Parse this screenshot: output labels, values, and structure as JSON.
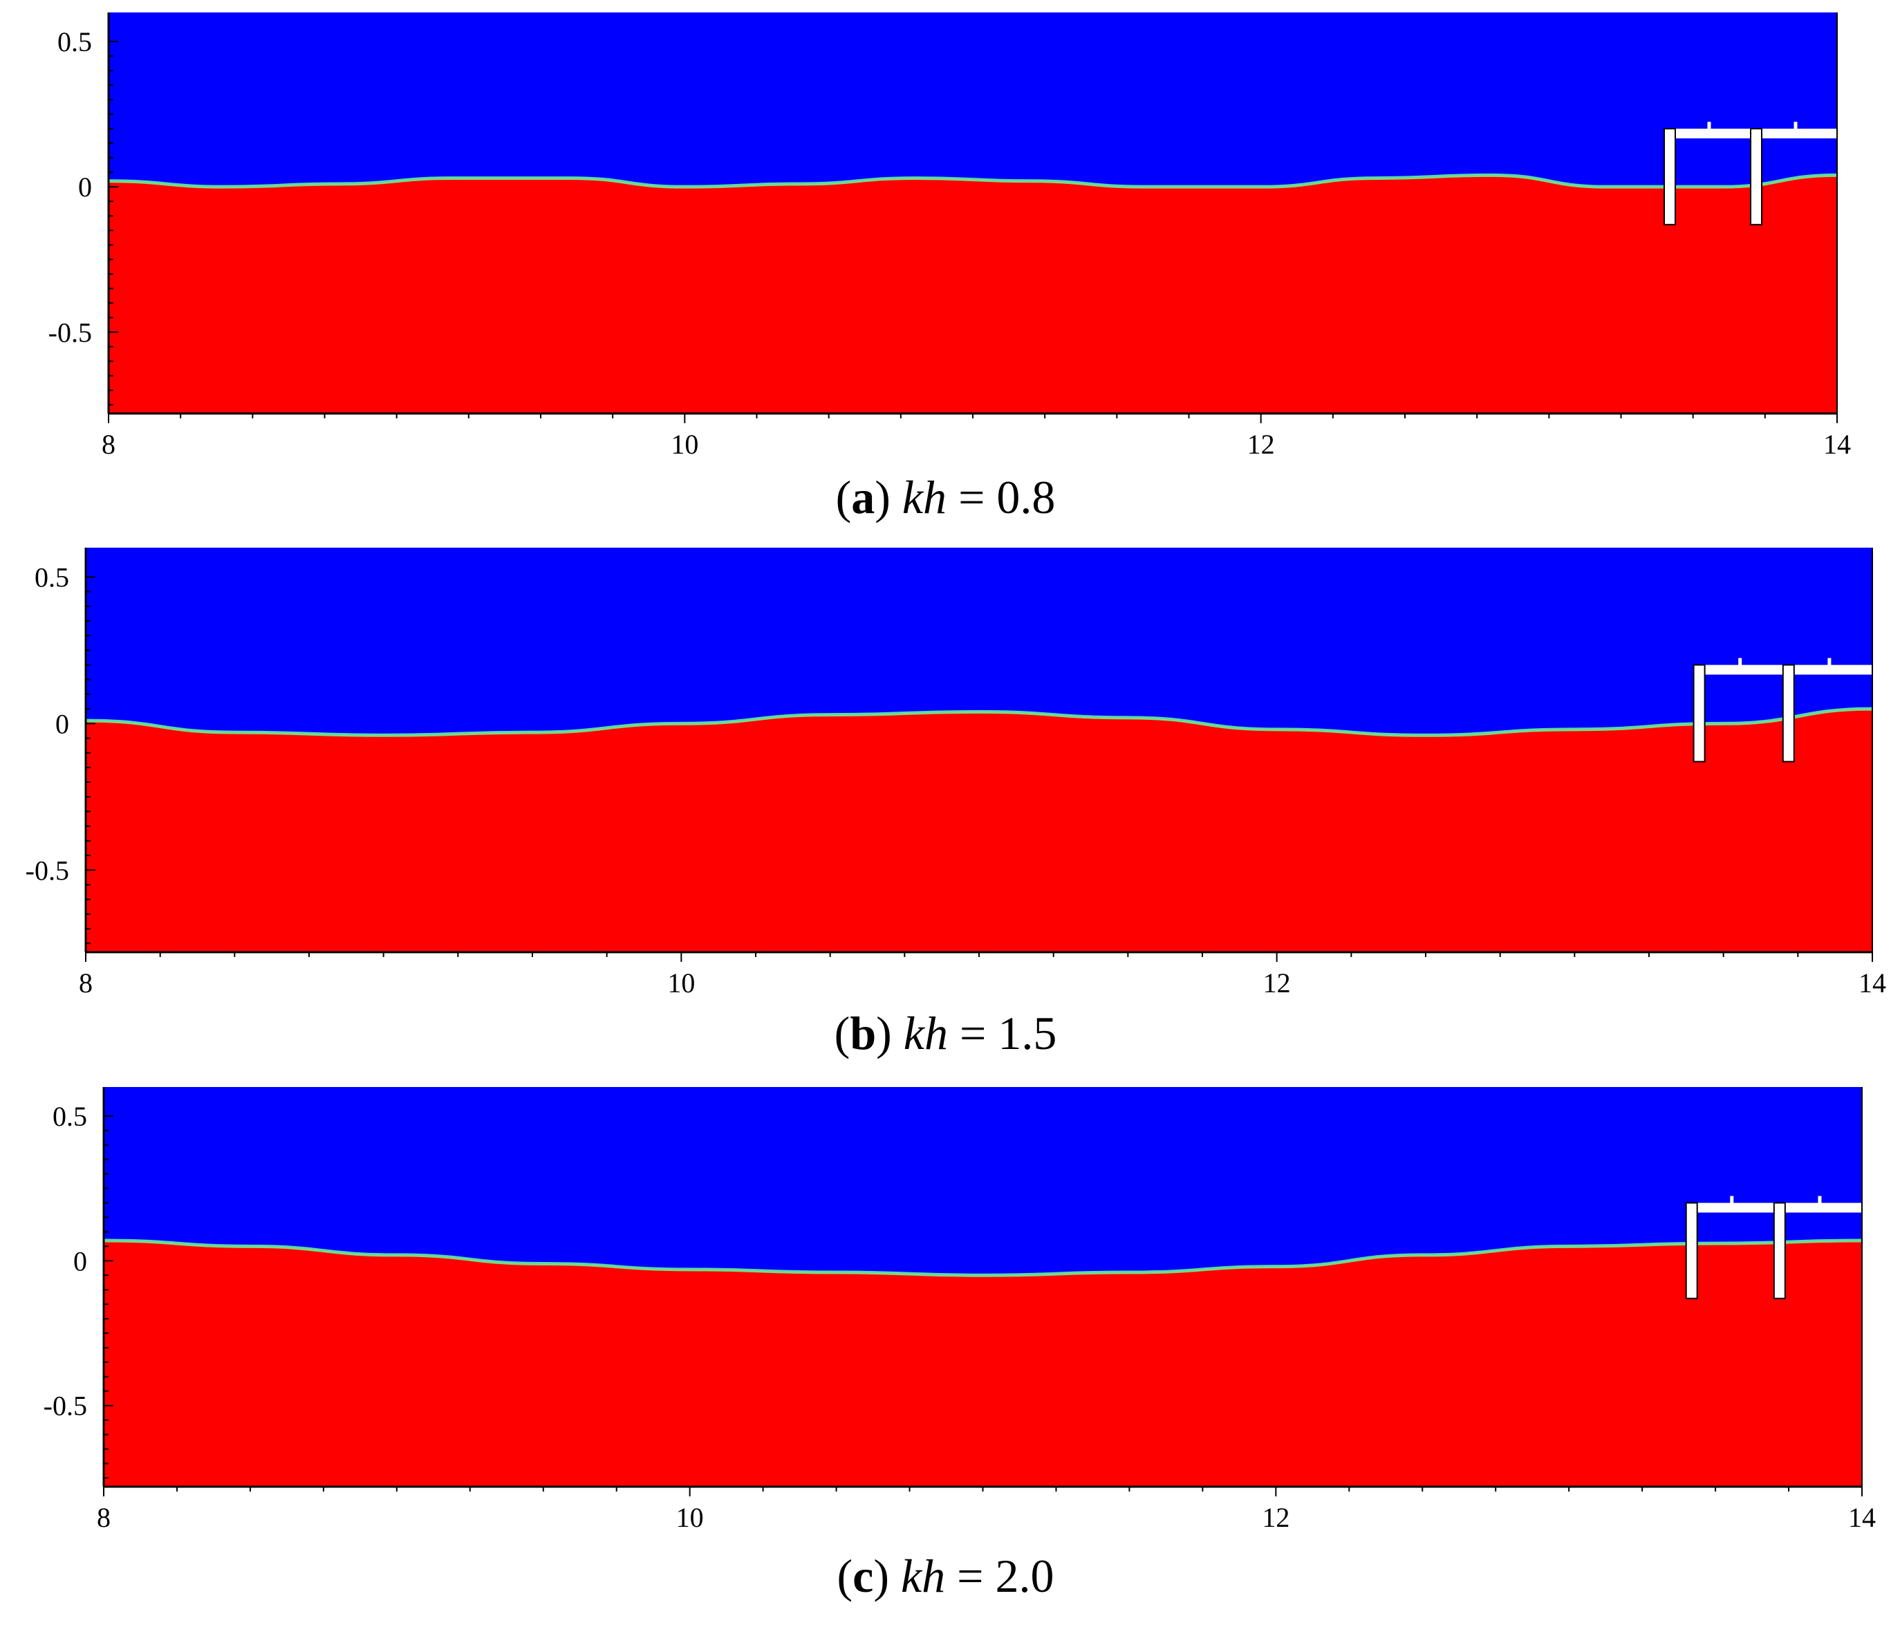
{
  "colors": {
    "air": "#0000ff",
    "water": "#ff0000",
    "interface": "#66ff99",
    "structure": "#ffffff",
    "axis": "#000000"
  },
  "chart_data": [
    {
      "type": "heatmap",
      "caption": {
        "open": "(",
        "letter": "a",
        "close": ")",
        "var": "kh",
        "rest": " = 0.8"
      },
      "xlim": [
        8,
        14
      ],
      "ylim": [
        -0.78,
        0.6
      ],
      "x_ticks": [
        8,
        10,
        12,
        14
      ],
      "x_tick_labels": [
        "8",
        "10",
        "12",
        "14"
      ],
      "y_ticks": [
        0.5,
        0,
        -0.5
      ],
      "y_tick_labels": [
        "0.5",
        "0",
        "-0.5"
      ],
      "surface": {
        "x": [
          8,
          8.4,
          8.8,
          9.2,
          9.6,
          10.0,
          10.4,
          10.8,
          11.2,
          11.6,
          12.0,
          12.4,
          12.8,
          13.2,
          13.6,
          14.0
        ],
        "y": [
          0.02,
          0.0,
          0.01,
          0.03,
          0.03,
          0.0,
          0.01,
          0.03,
          0.02,
          0.0,
          0.0,
          0.03,
          0.04,
          0.0,
          0.0,
          0.04
        ]
      }
    },
    {
      "type": "heatmap",
      "caption": {
        "open": "(",
        "letter": "b",
        "close": ")",
        "var": "kh",
        "rest": " = 1.5"
      },
      "xlim": [
        8,
        14
      ],
      "ylim": [
        -0.78,
        0.6
      ],
      "x_ticks": [
        8,
        10,
        12,
        14
      ],
      "x_tick_labels": [
        "8",
        "10",
        "12",
        "14"
      ],
      "y_ticks": [
        0.5,
        0,
        -0.5
      ],
      "y_tick_labels": [
        "0.5",
        "0",
        "-0.5"
      ],
      "surface": {
        "x": [
          8,
          8.5,
          9.0,
          9.5,
          10.0,
          10.5,
          11.0,
          11.5,
          12.0,
          12.5,
          13.0,
          13.5,
          14.0
        ],
        "y": [
          0.01,
          -0.03,
          -0.04,
          -0.03,
          0.0,
          0.03,
          0.04,
          0.02,
          -0.02,
          -0.04,
          -0.02,
          0.0,
          0.05
        ]
      }
    },
    {
      "type": "heatmap",
      "caption": {
        "open": "(",
        "letter": "c",
        "close": ")",
        "var": "kh",
        "rest": " = 2.0"
      },
      "xlim": [
        8,
        14
      ],
      "ylim": [
        -0.78,
        0.6
      ],
      "x_ticks": [
        8,
        10,
        12,
        14
      ],
      "x_tick_labels": [
        "8",
        "10",
        "12",
        "14"
      ],
      "y_ticks": [
        0.5,
        0,
        -0.5
      ],
      "y_tick_labels": [
        "0.5",
        "0",
        "-0.5"
      ],
      "surface": {
        "x": [
          8,
          8.5,
          9.0,
          9.5,
          10.0,
          10.5,
          11.0,
          11.5,
          12.0,
          12.5,
          13.0,
          13.5,
          14.0
        ],
        "y": [
          0.07,
          0.05,
          0.02,
          -0.01,
          -0.03,
          -0.04,
          -0.05,
          -0.04,
          -0.02,
          0.02,
          0.05,
          0.06,
          0.07
        ]
      }
    }
  ]
}
